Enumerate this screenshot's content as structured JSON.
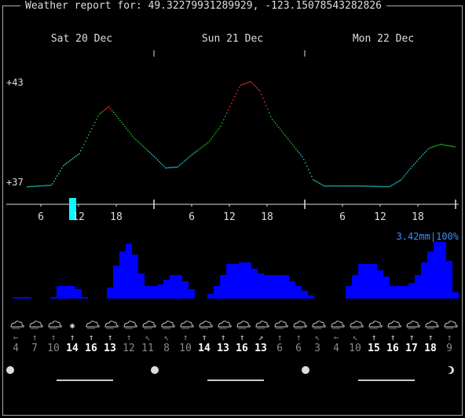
{
  "header": {
    "title": "Weather report for: 49.32279931289929, -123.15078543282826"
  },
  "days": [
    "Sat 20 Dec",
    "Sun 21 Dec",
    "Mon 22 Dec"
  ],
  "temp_axis": {
    "max_label": "+43",
    "min_label": "+37",
    "max": 43,
    "min": 37
  },
  "hour_labels": [
    "6",
    "12",
    "18",
    "6",
    "12",
    "18",
    "6",
    "12",
    "18"
  ],
  "precip": {
    "summary": "3.42mm|100%"
  },
  "wind": {
    "arrows": [
      "←",
      "↑",
      "↑",
      "↑",
      "↑",
      "↑",
      "↑",
      "↖",
      "↖",
      "↑",
      "↑",
      "↑",
      "↑",
      "↗",
      "↑",
      "↑",
      "↖",
      "←",
      "↖",
      "↑",
      "↑",
      "↑",
      "↑",
      "↑"
    ],
    "speeds": [
      "4",
      "7",
      "10",
      "14",
      "16",
      "13",
      "12",
      "11",
      "8",
      "10",
      "14",
      "13",
      "16",
      "13",
      "6",
      "6",
      "3",
      "4",
      "10",
      "15",
      "16",
      "17",
      "18",
      "9"
    ],
    "strong": [
      false,
      false,
      false,
      true,
      true,
      true,
      false,
      false,
      false,
      false,
      true,
      true,
      true,
      true,
      false,
      false,
      false,
      false,
      false,
      true,
      true,
      true,
      true,
      false
    ]
  },
  "colors": {
    "precip_bar": "#0000ff",
    "now_marker": "#00ffff",
    "precip_text": "#3a8cff"
  }
}
